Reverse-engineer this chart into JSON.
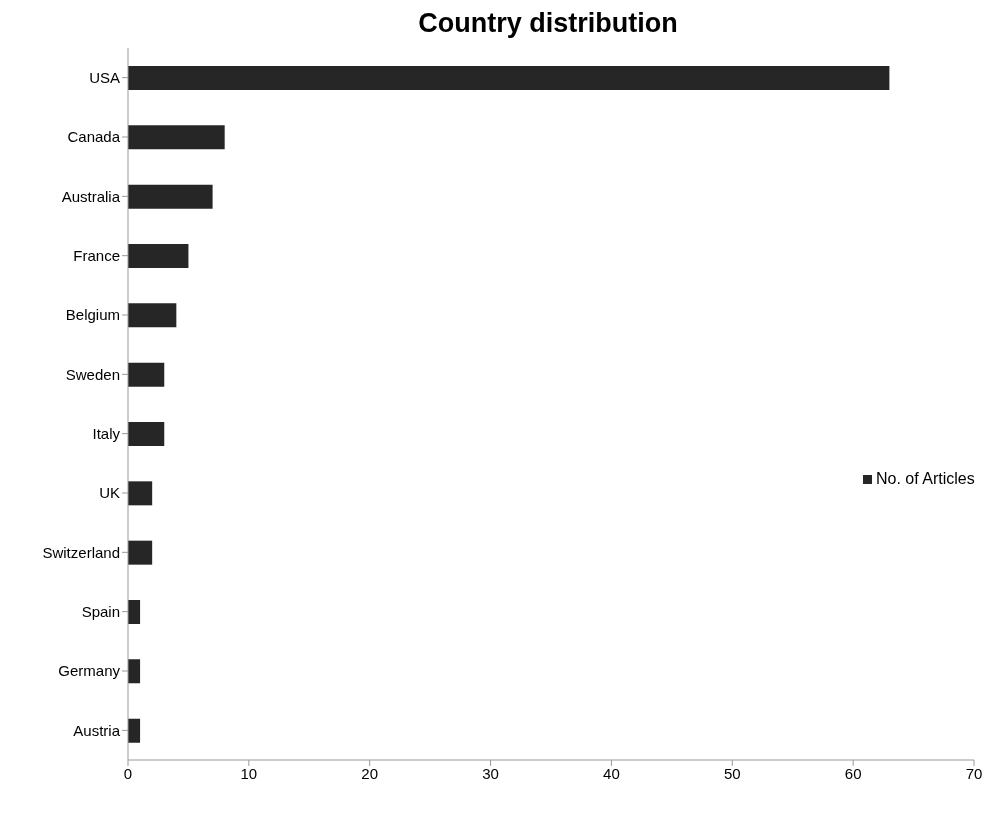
{
  "chart_data": {
    "type": "bar",
    "orientation": "horizontal",
    "title": "Country distribution",
    "categories": [
      "USA",
      "Canada",
      "Australia",
      "France",
      "Belgium",
      "Sweden",
      "Italy",
      "UK",
      "Switzerland",
      "Spain",
      "Germany",
      "Austria"
    ],
    "series": [
      {
        "name": "No. of Articles",
        "color": "#262626",
        "values": [
          63,
          8,
          7,
          5,
          4,
          3,
          3,
          2,
          2,
          1,
          1,
          1
        ]
      }
    ],
    "xlim": [
      0,
      70
    ],
    "xticks": [
      0,
      10,
      20,
      30,
      40,
      50,
      60,
      70
    ],
    "grid": false,
    "legend": "right"
  }
}
